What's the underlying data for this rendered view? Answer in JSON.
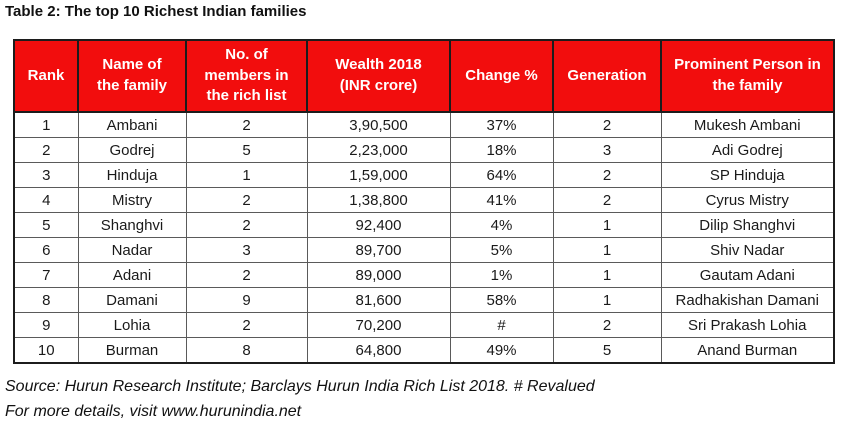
{
  "page_title": "Table 2: The top 10 Richest Indian families",
  "colors": {
    "header_bg": "#f20d0d",
    "header_text": "#ffffff",
    "border_dark": "#1c1c1c",
    "border_gray": "#5a5a5a"
  },
  "table": {
    "headers": [
      "Rank",
      "Name of\nthe family",
      "No. of\nmembers in\nthe rich list",
      "Wealth 2018\n(INR crore)",
      "Change %",
      "Generation",
      "Prominent Person in\nthe family"
    ],
    "rows": [
      [
        "1",
        "Ambani",
        "2",
        "3,90,500",
        "37%",
        "2",
        "Mukesh Ambani"
      ],
      [
        "2",
        "Godrej",
        "5",
        "2,23,000",
        "18%",
        "3",
        "Adi Godrej"
      ],
      [
        "3",
        "Hinduja",
        "1",
        "1,59,000",
        "64%",
        "2",
        "SP Hinduja"
      ],
      [
        "4",
        "Mistry",
        "2",
        "1,38,800",
        "41%",
        "2",
        "Cyrus Mistry"
      ],
      [
        "5",
        "Shanghvi",
        "2",
        "92,400",
        "4%",
        "1",
        "Dilip Shanghvi"
      ],
      [
        "6",
        "Nadar",
        "3",
        "89,700",
        "5%",
        "1",
        "Shiv Nadar"
      ],
      [
        "7",
        "Adani",
        "2",
        "89,000",
        "1%",
        "1",
        "Gautam Adani"
      ],
      [
        "8",
        "Damani",
        "9",
        "81,600",
        "58%",
        "1",
        "Radhakishan Damani"
      ],
      [
        "9",
        "Lohia",
        "2",
        "70,200",
        "#",
        "2",
        "Sri Prakash Lohia"
      ],
      [
        "10",
        "Burman",
        "8",
        "64,800",
        "49%",
        "5",
        "Anand Burman"
      ]
    ]
  },
  "footer": {
    "source_line": "Source: Hurun Research Institute; Barclays Hurun India Rich List 2018. # Revalued",
    "details_line": "For more details, visit www.hurunindia.net"
  }
}
